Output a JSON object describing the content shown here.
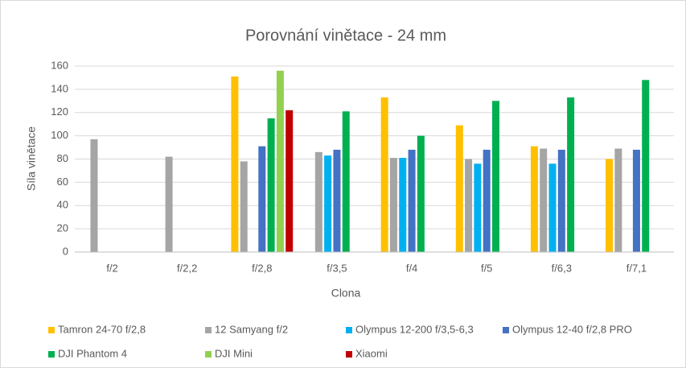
{
  "chart_data": {
    "type": "bar",
    "title": "Porovnání vinětace - 24 mm",
    "x_label": "Clona",
    "y_label": "Síla vinětace",
    "categories": [
      "f/2",
      "f/2,2",
      "f/2,8",
      "f/3,5",
      "f/4",
      "f/5",
      "f/6,3",
      "f/7,1"
    ],
    "series": [
      {
        "name": "Tamron 24-70 f/2,8",
        "color": "#ffc000",
        "values": [
          null,
          null,
          151,
          null,
          133,
          109,
          91,
          80
        ]
      },
      {
        "name": "12 Samyang f/2",
        "color": "#a5a5a5",
        "values": [
          97,
          82,
          78,
          86,
          81,
          80,
          89,
          89
        ]
      },
      {
        "name": "Olympus 12-200 f/3,5-6,3",
        "color": "#00b0f0",
        "values": [
          null,
          null,
          null,
          83,
          81,
          76,
          76,
          null
        ]
      },
      {
        "name": "Olympus 12-40 f/2,8 PRO",
        "color": "#4472c4",
        "values": [
          null,
          null,
          91,
          88,
          88,
          88,
          88,
          88
        ]
      },
      {
        "name": "DJI Phantom 4",
        "color": "#00b050",
        "values": [
          null,
          null,
          115,
          121,
          100,
          130,
          133,
          148
        ]
      },
      {
        "name": "DJI Mini",
        "color": "#92d050",
        "values": [
          null,
          null,
          156,
          null,
          null,
          null,
          null,
          null
        ]
      },
      {
        "name": "Xiaomi",
        "color": "#c00000",
        "values": [
          null,
          null,
          122,
          null,
          null,
          null,
          null,
          null
        ]
      }
    ],
    "ylim": [
      0,
      160
    ],
    "yticks": [
      0,
      20,
      40,
      60,
      80,
      100,
      120,
      140,
      160
    ],
    "grid": true,
    "legend": "bottom"
  }
}
